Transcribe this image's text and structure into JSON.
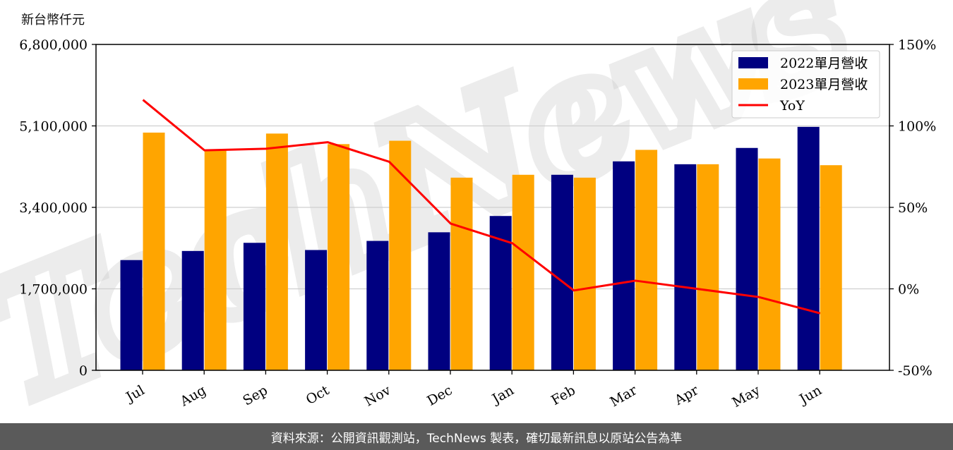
{
  "unit_label": "新台幣仟元",
  "footer_text": "資料來源：公開資訊觀測站，TechNews 製表，確切最新訊息以原站公告為準",
  "watermark_text": "TechNews",
  "chart_data": {
    "type": "bar",
    "categories": [
      "Jul",
      "Aug",
      "Sep",
      "Oct",
      "Nov",
      "Dec",
      "Jan",
      "Feb",
      "Mar",
      "Apr",
      "May",
      "Jun"
    ],
    "series": [
      {
        "name": "2022單月營收",
        "type": "bar",
        "color": "#000080",
        "values": [
          2300000,
          2490000,
          2660000,
          2510000,
          2700000,
          2880000,
          3220000,
          4080000,
          4360000,
          4300000,
          4640000,
          5080000
        ]
      },
      {
        "name": "2023單月營收",
        "type": "bar",
        "color": "#ffa500",
        "values": [
          4960000,
          4610000,
          4940000,
          4720000,
          4790000,
          4020000,
          4080000,
          4020000,
          4600000,
          4300000,
          4420000,
          4280000
        ]
      },
      {
        "name": "YoY",
        "type": "line",
        "axis": "right",
        "color": "#ff0000",
        "values": [
          116,
          85,
          86,
          90,
          78,
          40,
          28,
          -1,
          5,
          0,
          -5,
          -15
        ]
      }
    ],
    "y_left": {
      "ticks": [
        "0",
        "1,700,000",
        "3,400,000",
        "5,100,000",
        "6,800,000"
      ],
      "lim": [
        0,
        6800000
      ]
    },
    "y_right": {
      "ticks": [
        "-50%",
        "0%",
        "50%",
        "100%",
        "150%"
      ],
      "lim": [
        -50,
        150
      ]
    },
    "grid": "horizontal",
    "legend": "top-right"
  }
}
